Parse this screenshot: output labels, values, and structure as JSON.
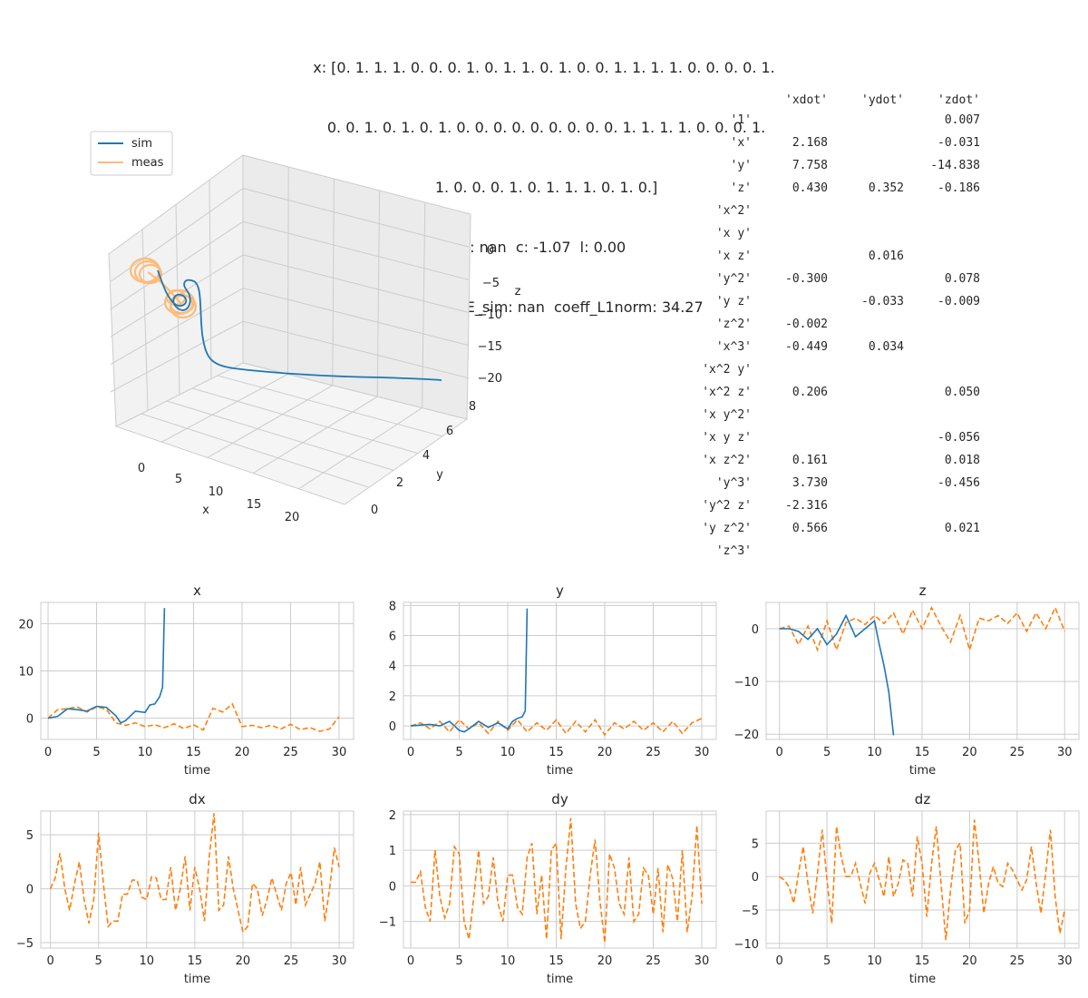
{
  "title_lines": [
    "x: [0. 1. 1. 1. 0. 0. 0. 1. 0. 1. 1. 0. 1. 0. 0. 1. 1. 1. 1. 0. 0. 0. 0. 1.",
    " 0. 0. 1. 0. 1. 0. 1. 0. 0. 0. 0. 0. 0. 0. 0. 0. 1. 1. 1. 1. 0. 0. 0. 1.",
    " 1. 0. 0. 0. 1. 0. 1. 1. 1. 0. 1. 0.]",
    "y: nan  c: -1.07  l: 0.00",
    "log10_NMAE_sim: nan  coeff_L1norm: 34.27"
  ],
  "coef_table": {
    "headers": [
      "",
      "'xdot'",
      "'ydot'",
      "'zdot'"
    ],
    "rows": [
      [
        "'1'",
        "",
        "",
        "0.007"
      ],
      [
        "'x'",
        "2.168",
        "",
        "-0.031"
      ],
      [
        "'y'",
        "7.758",
        "",
        "-14.838"
      ],
      [
        "'z'",
        "0.430",
        "0.352",
        "-0.186"
      ],
      [
        "'x^2'",
        "",
        "",
        ""
      ],
      [
        "'x y'",
        "",
        "",
        ""
      ],
      [
        "'x z'",
        "",
        "0.016",
        ""
      ],
      [
        "'y^2'",
        "-0.300",
        "",
        "0.078"
      ],
      [
        "'y z'",
        "",
        "-0.033",
        "-0.009"
      ],
      [
        "'z^2'",
        "-0.002",
        "",
        ""
      ],
      [
        "'x^3'",
        "-0.449",
        "0.034",
        ""
      ],
      [
        "'x^2 y'",
        "",
        "",
        ""
      ],
      [
        "'x^2 z'",
        "0.206",
        "",
        "0.050"
      ],
      [
        "'x y^2'",
        "",
        "",
        ""
      ],
      [
        "'x y z'",
        "",
        "",
        "-0.056"
      ],
      [
        "'x z^2'",
        "0.161",
        "",
        "0.018"
      ],
      [
        "'y^3'",
        "3.730",
        "",
        "-0.456"
      ],
      [
        "'y^2 z'",
        "-2.316",
        "",
        ""
      ],
      [
        "'y z^2'",
        "0.566",
        "",
        "0.021"
      ],
      [
        "'z^3'",
        "",
        "",
        ""
      ]
    ]
  },
  "colors": {
    "sim": "#1f77b4",
    "meas": "#ff7f0e",
    "meas3d": "#ffbb78",
    "grid": "#cccccc",
    "text": "#262626"
  },
  "plot3d": {
    "legend": [
      "sim",
      "meas"
    ],
    "xlabel": "x",
    "ylabel": "y",
    "zlabel": "z",
    "xticks": [
      "0",
      "5",
      "10",
      "15",
      "20"
    ],
    "yticks": [
      "0",
      "2",
      "4",
      "6",
      "8"
    ],
    "zticks": [
      "0",
      "−5",
      "−10",
      "−15",
      "−20"
    ]
  },
  "chart_data": [
    {
      "type": "line",
      "title": "x",
      "xlabel": "time",
      "xlim": [
        -0.75,
        31.5
      ],
      "ylim": [
        -4.5,
        24.5
      ],
      "xticks": [
        "0",
        "5",
        "10",
        "15",
        "20",
        "25",
        "30"
      ],
      "yticks": [
        "0",
        "10",
        "20"
      ],
      "series": [
        {
          "name": "sim",
          "style": "solid",
          "x": [
            0,
            1,
            2,
            3,
            4,
            5,
            6,
            7,
            7.5,
            8,
            9,
            10,
            10.5,
            11,
            11.5,
            11.8,
            12
          ],
          "y": [
            0,
            0.4,
            2.0,
            1.8,
            1.5,
            2.5,
            2.3,
            0.5,
            -1.0,
            -0.5,
            1.5,
            1.2,
            2.8,
            3.0,
            4.5,
            6.5,
            23.3
          ]
        },
        {
          "name": "meas",
          "style": "dashed",
          "x": [
            0,
            1,
            2,
            3,
            4,
            5,
            6,
            7,
            8,
            9,
            10,
            11,
            12,
            13,
            14,
            15,
            16,
            17,
            18,
            19,
            20,
            21,
            22,
            23,
            24,
            25,
            26,
            27,
            28,
            29,
            30
          ],
          "y": [
            0,
            1.8,
            2.0,
            2.4,
            1.3,
            2.4,
            1.9,
            -1.0,
            -1.5,
            -1.0,
            -1.8,
            -1.4,
            -2.0,
            -1.2,
            -2.2,
            -1.4,
            -2.5,
            2.1,
            1.3,
            3.0,
            -1.8,
            -1.5,
            -2.0,
            -1.5,
            -2.3,
            -1.3,
            -2.4,
            -2.0,
            -2.8,
            -2.3,
            0.3
          ]
        }
      ]
    },
    {
      "type": "line",
      "title": "y",
      "xlabel": "time",
      "xlim": [
        -0.75,
        31.5
      ],
      "ylim": [
        -0.9,
        8.2
      ],
      "xticks": [
        "0",
        "5",
        "10",
        "15",
        "20",
        "25",
        "30"
      ],
      "yticks": [
        "0",
        "2",
        "4",
        "6",
        "8"
      ],
      "series": [
        {
          "name": "sim",
          "style": "solid",
          "x": [
            0,
            1,
            2,
            3,
            4,
            5,
            5.5,
            6,
            7,
            8,
            9,
            10,
            10.5,
            11,
            11.5,
            11.8,
            12
          ],
          "y": [
            0,
            0.05,
            0.1,
            0,
            0.3,
            -0.3,
            -0.4,
            -0.2,
            0.3,
            -0.1,
            0.2,
            -0.2,
            0.3,
            0.5,
            0.6,
            1.0,
            7.8
          ]
        },
        {
          "name": "meas",
          "style": "dashed",
          "x": [
            0,
            1,
            2,
            3,
            4,
            5,
            6,
            7,
            8,
            9,
            10,
            11,
            12,
            13,
            14,
            15,
            16,
            17,
            18,
            19,
            20,
            21,
            22,
            23,
            24,
            25,
            26,
            27,
            28,
            29,
            30
          ],
          "y": [
            0,
            0.2,
            -0.2,
            0.3,
            -0.4,
            0.4,
            -0.2,
            0.2,
            -0.5,
            0.3,
            -0.3,
            0.4,
            -0.4,
            0.2,
            -0.3,
            0.4,
            -0.5,
            0.3,
            -0.4,
            0.4,
            -0.6,
            0.2,
            -0.2,
            0.3,
            -0.3,
            0.2,
            -0.4,
            0.3,
            -0.5,
            0.2,
            0.5
          ]
        }
      ]
    },
    {
      "type": "line",
      "title": "z",
      "xlabel": "time",
      "xlim": [
        -1.4,
        31.5
      ],
      "ylim": [
        -21,
        5
      ],
      "xticks": [
        "0",
        "5",
        "10",
        "15",
        "20",
        "25",
        "30"
      ],
      "yticks": [
        "0",
        "−10",
        "−20"
      ],
      "series": [
        {
          "name": "sim",
          "style": "solid",
          "x": [
            0,
            1,
            2,
            3,
            4,
            5,
            6,
            7,
            7.5,
            8,
            9,
            10,
            10.5,
            11,
            11.5,
            12
          ],
          "y": [
            0,
            0,
            -0.5,
            -2.0,
            0,
            -3.0,
            -1.0,
            2.5,
            0.5,
            -1.5,
            0,
            1.5,
            -3.0,
            -7.0,
            -12.0,
            -20.2
          ]
        },
        {
          "name": "meas",
          "style": "dashed",
          "x": [
            0,
            1,
            2,
            3,
            4,
            5,
            6,
            7,
            8,
            9,
            10,
            11,
            12,
            13,
            14,
            15,
            16,
            17,
            18,
            19,
            20,
            21,
            22,
            23,
            24,
            25,
            26,
            27,
            28,
            29,
            30
          ],
          "y": [
            0,
            0.5,
            -3.0,
            0.5,
            -4.0,
            1.5,
            -4.0,
            1.2,
            2.0,
            0.8,
            2.5,
            1.0,
            3.0,
            -1.0,
            3.5,
            0.0,
            4.0,
            0.5,
            -2.5,
            2.5,
            -4.0,
            2.0,
            1.5,
            2.5,
            1.0,
            3.0,
            -0.5,
            3.0,
            0,
            4.0,
            -0.5
          ]
        }
      ]
    },
    {
      "type": "line",
      "title": "dx",
      "xlabel": "time",
      "xlim": [
        -1.0,
        31.5
      ],
      "ylim": [
        -5.5,
        7.2
      ],
      "xticks": [
        "0",
        "5",
        "10",
        "15",
        "20",
        "25",
        "30"
      ],
      "yticks": [
        "−5",
        "0",
        "5"
      ],
      "series": [
        {
          "name": "meas",
          "style": "dashed",
          "x": [
            0,
            0.5,
            1,
            1.5,
            2,
            2.5,
            3,
            3.5,
            4,
            4.5,
            5,
            5.5,
            6,
            6.5,
            7,
            7.5,
            8,
            8.5,
            9,
            9.5,
            10,
            10.5,
            11,
            11.5,
            12,
            12.5,
            13,
            13.5,
            14,
            14.5,
            15,
            15.5,
            16,
            16.5,
            17,
            17.5,
            18,
            18.5,
            19,
            19.5,
            20,
            20.5,
            21,
            21.5,
            22,
            22.5,
            23,
            23.5,
            24,
            24.5,
            25,
            25.5,
            26,
            26.5,
            27,
            27.5,
            28,
            28.5,
            29,
            29.5,
            30
          ],
          "y": [
            0,
            1,
            3.3,
            0,
            -2,
            0.5,
            2.5,
            -1,
            -3.2,
            -1,
            5.2,
            0.5,
            -3.5,
            -3,
            -3,
            -0.5,
            -0.5,
            0.8,
            0.8,
            -0.8,
            -1.0,
            1.1,
            1.0,
            -1.0,
            -1.0,
            2.0,
            -2.0,
            0,
            3.0,
            -2.0,
            2.0,
            0,
            -3.0,
            3.0,
            7.0,
            -2.0,
            -1.5,
            3.0,
            0,
            -2.0,
            -4.0,
            -3.5,
            0.5,
            0,
            -2.5,
            -1.0,
            1.0,
            -0.5,
            -2.0,
            0.5,
            1.5,
            -1.5,
            2.0,
            -1.5,
            -0.5,
            0.5,
            2.5,
            -3.0,
            0,
            3.8,
            2.0
          ]
        }
      ]
    },
    {
      "type": "line",
      "title": "dy",
      "xlabel": "time",
      "xlim": [
        -0.75,
        31.5
      ],
      "ylim": [
        -1.75,
        2.1
      ],
      "xticks": [
        "0",
        "5",
        "10",
        "15",
        "20",
        "25",
        "30"
      ],
      "yticks": [
        "−1",
        "0",
        "1",
        "2"
      ],
      "series": [
        {
          "name": "meas",
          "style": "dashed",
          "x": [
            0,
            0.5,
            1,
            1.5,
            2,
            2.5,
            3,
            3.5,
            4,
            4.5,
            5,
            5.5,
            6,
            6.5,
            7,
            7.5,
            8,
            8.5,
            9,
            9.5,
            10,
            10.5,
            11,
            11.5,
            12,
            12.5,
            13,
            13.5,
            14,
            14.5,
            15,
            15.5,
            16,
            16.5,
            17,
            17.5,
            18,
            18.5,
            19,
            19.5,
            20,
            20.5,
            21,
            21.5,
            22,
            22.5,
            23,
            23.5,
            24,
            24.5,
            25,
            25.5,
            26,
            26.5,
            27,
            27.5,
            28,
            28.5,
            29,
            29.5,
            30
          ],
          "y": [
            0.1,
            0.1,
            0.4,
            -0.6,
            -1.0,
            1.0,
            -0.3,
            -0.9,
            -0.5,
            1.1,
            0.9,
            -1.0,
            -1.5,
            -0.3,
            1.0,
            -0.5,
            -0.3,
            0.8,
            -0.5,
            -1.0,
            0.3,
            0.3,
            -0.6,
            -0.8,
            0.8,
            1.2,
            -0.8,
            0.3,
            -1.5,
            1.0,
            1.2,
            -1.5,
            0.5,
            1.9,
            -0.5,
            -1.2,
            -1.0,
            0.3,
            1.3,
            -0.4,
            -1.6,
            0.9,
            0.5,
            -0.5,
            -0.8,
            0.8,
            -1.0,
            -0.8,
            0.5,
            0.3,
            -0.8,
            0.5,
            -1.3,
            0.6,
            0.2,
            -1.0,
            1.0,
            -1.3,
            -0.3,
            1.7,
            -0.5
          ]
        }
      ]
    },
    {
      "type": "line",
      "title": "dz",
      "xlabel": "time",
      "xlim": [
        -1.4,
        31.5
      ],
      "ylim": [
        -10.7,
        9.8
      ],
      "xticks": [
        "0",
        "5",
        "10",
        "15",
        "20",
        "25",
        "30"
      ],
      "yticks": [
        "−10",
        "−5",
        "0",
        "5"
      ],
      "series": [
        {
          "name": "meas",
          "style": "dashed",
          "x": [
            0,
            0.5,
            1,
            1.5,
            2,
            2.5,
            3,
            3.5,
            4,
            4.5,
            5,
            5.5,
            6,
            6.5,
            7,
            7.5,
            8,
            8.5,
            9,
            9.5,
            10,
            10.5,
            11,
            11.5,
            12,
            12.5,
            13,
            13.5,
            14,
            14.5,
            15,
            15.5,
            16,
            16.5,
            17,
            17.5,
            18,
            18.5,
            19,
            19.5,
            20,
            20.5,
            21,
            21.5,
            22,
            22.5,
            23,
            23.5,
            24,
            24.5,
            25,
            25.5,
            26,
            26.5,
            27,
            27.5,
            28,
            28.5,
            29,
            29.5,
            30
          ],
          "y": [
            0,
            -0.5,
            -1.5,
            -4.0,
            0.5,
            4.5,
            -1.0,
            -5.5,
            0.5,
            7.0,
            -0.5,
            -7.0,
            7.5,
            3.0,
            0,
            0,
            2.0,
            -1.0,
            -4.0,
            0.5,
            2.0,
            -0.5,
            -3.0,
            3.0,
            -3.0,
            -1.0,
            2.5,
            2.0,
            -3.0,
            6.0,
            2.0,
            -6.0,
            2.0,
            7.5,
            -1.0,
            -9.5,
            -2.0,
            4.0,
            5.0,
            -7.0,
            -5.0,
            8.5,
            2.0,
            -5.5,
            -1.0,
            1.5,
            -1.0,
            -1.5,
            2.0,
            1.0,
            -0.5,
            -2.0,
            -0.5,
            4.5,
            -1.0,
            -5.5,
            0.5,
            7.0,
            -3.0,
            -8.5,
            -5.0
          ]
        }
      ]
    }
  ]
}
